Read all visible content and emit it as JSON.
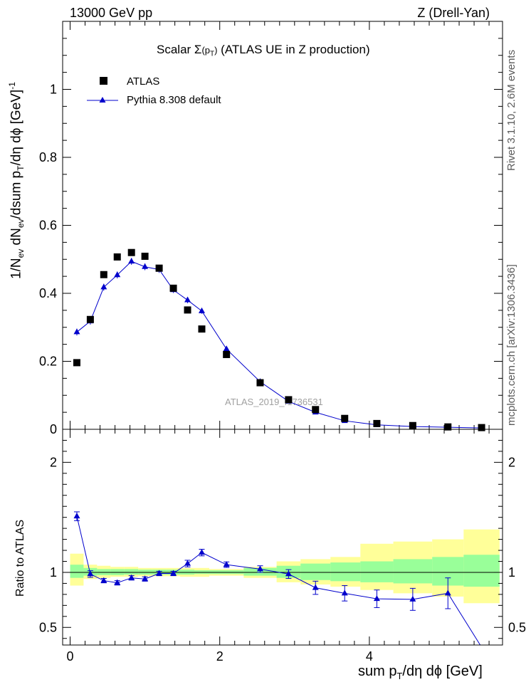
{
  "header": {
    "left": "13000 GeV pp",
    "right": "Z (Drell-Yan)"
  },
  "side_labels": {
    "top": "Rivet 3.1.10, 2.6M events",
    "bottom": "mcplots.cern.ch [arXiv:1306.3436]"
  },
  "colors": {
    "data": "#000000",
    "mc": "#0000cc",
    "band_inner": "#99ff99",
    "band_outer": "#ffff99"
  },
  "chart_data": [
    {
      "type": "scatter",
      "title_parts": {
        "pre": "Scalar ",
        "sigma": "Σ",
        "post": " (ATLAS UE in Z production)"
      },
      "ylabel_parts": {
        "a": "1/N",
        "a_sub": "ev",
        "b": " dN",
        "b_sub": "ev",
        "c": "/dsum p",
        "c_sub": "T",
        "d": "/dη dϕ  [GeV]",
        "d_sup": "-1"
      },
      "watermark": "ATLAS_2019_I1736531",
      "xlim": [
        -0.1,
        5.78
      ],
      "ylim": [
        0,
        1.2
      ],
      "yticks": [
        "0",
        "0.2",
        "0.4",
        "0.6",
        "0.8",
        "1"
      ],
      "legend": [
        {
          "name": "ATLAS",
          "marker": "square"
        },
        {
          "name": "Pythia 8.308 default",
          "marker": "triangle-line"
        }
      ],
      "series": [
        {
          "name": "ATLAS",
          "x": [
            0.09,
            0.27,
            0.45,
            0.63,
            0.82,
            1.0,
            1.19,
            1.38,
            1.57,
            1.76,
            2.09,
            2.54,
            2.92,
            3.28,
            3.67,
            4.1,
            4.58,
            5.05,
            5.5
          ],
          "y": [
            0.196,
            0.323,
            0.455,
            0.507,
            0.52,
            0.509,
            0.474,
            0.415,
            0.351,
            0.295,
            0.22,
            0.137,
            0.087,
            0.058,
            0.032,
            0.017,
            0.011,
            0.007,
            0.005
          ]
        },
        {
          "name": "Pythia 8.308 default",
          "x": [
            0.09,
            0.27,
            0.45,
            0.63,
            0.82,
            1.0,
            1.19,
            1.38,
            1.57,
            1.76,
            2.09,
            2.54,
            2.92,
            3.28,
            3.67,
            4.1,
            4.58,
            5.05,
            5.5
          ],
          "y": [
            0.286,
            0.318,
            0.418,
            0.454,
            0.494,
            0.478,
            0.47,
            0.41,
            0.38,
            0.348,
            0.236,
            0.14,
            0.082,
            0.05,
            0.025,
            0.013,
            0.008,
            0.006,
            0.004
          ],
          "err": [
            0.01,
            0.01,
            0.01,
            0.01,
            0.01,
            0.01,
            0.01,
            0.009,
            0.009,
            0.008,
            0.006,
            0.004,
            0.003,
            0.002,
            0.002,
            0.001,
            0.001,
            0.001,
            0.001
          ]
        }
      ]
    },
    {
      "type": "line",
      "ylabel": "Ratio to ATLAS",
      "xlabel_parts": {
        "a": "sum p",
        "a_sub": "T",
        "b": "/dη dϕ [GeV]"
      },
      "xlim": [
        -0.1,
        5.78
      ],
      "ylim": [
        0.34,
        2.3
      ],
      "xticks": [
        "0",
        "2",
        "4"
      ],
      "yticks": [
        "0.5",
        "1",
        "2"
      ],
      "bands": {
        "edges": [
          0,
          0.18,
          0.36,
          0.54,
          0.72,
          0.91,
          1.09,
          1.28,
          1.47,
          1.66,
          1.86,
          2.32,
          2.76,
          3.08,
          3.48,
          3.88,
          4.32,
          4.84,
          5.26,
          5.74
        ],
        "inner": [
          [
            0.95,
            1.07
          ],
          [
            0.97,
            1.04
          ],
          [
            0.975,
            1.03
          ],
          [
            0.975,
            1.03
          ],
          [
            0.98,
            1.03
          ],
          [
            0.98,
            1.025
          ],
          [
            0.98,
            1.025
          ],
          [
            0.98,
            1.025
          ],
          [
            0.98,
            1.025
          ],
          [
            0.985,
            1.02
          ],
          [
            0.985,
            1.02
          ],
          [
            0.97,
            1.04
          ],
          [
            0.95,
            1.06
          ],
          [
            0.93,
            1.08
          ],
          [
            0.92,
            1.09
          ],
          [
            0.91,
            1.1
          ],
          [
            0.9,
            1.12
          ],
          [
            0.88,
            1.14
          ],
          [
            0.87,
            1.16
          ]
        ],
        "outer": [
          [
            0.88,
            1.17
          ],
          [
            0.94,
            1.07
          ],
          [
            0.95,
            1.06
          ],
          [
            0.96,
            1.05
          ],
          [
            0.96,
            1.05
          ],
          [
            0.965,
            1.04
          ],
          [
            0.965,
            1.04
          ],
          [
            0.965,
            1.04
          ],
          [
            0.96,
            1.04
          ],
          [
            0.96,
            1.04
          ],
          [
            0.97,
            1.03
          ],
          [
            0.95,
            1.05
          ],
          [
            0.91,
            1.1
          ],
          [
            0.89,
            1.12
          ],
          [
            0.87,
            1.14
          ],
          [
            0.84,
            1.26
          ],
          [
            0.81,
            1.28
          ],
          [
            0.78,
            1.3
          ],
          [
            0.72,
            1.39
          ]
        ]
      },
      "series": [
        {
          "name": "Pythia 8.308 default",
          "x": [
            0.09,
            0.27,
            0.45,
            0.63,
            0.82,
            1.0,
            1.19,
            1.38,
            1.57,
            1.76,
            2.09,
            2.54,
            2.92,
            3.28,
            3.67,
            4.1,
            4.58,
            5.05,
            5.5
          ],
          "y": [
            1.51,
            0.985,
            0.925,
            0.905,
            0.95,
            0.94,
            0.99,
            0.99,
            1.08,
            1.18,
            1.07,
            1.03,
            0.985,
            0.86,
            0.81,
            0.76,
            0.755,
            0.81,
            0.32
          ],
          "err": [
            0.04,
            0.03,
            0.02,
            0.02,
            0.02,
            0.02,
            0.02,
            0.02,
            0.03,
            0.03,
            0.025,
            0.03,
            0.04,
            0.06,
            0.07,
            0.08,
            0.1,
            0.14,
            0
          ]
        }
      ]
    }
  ]
}
